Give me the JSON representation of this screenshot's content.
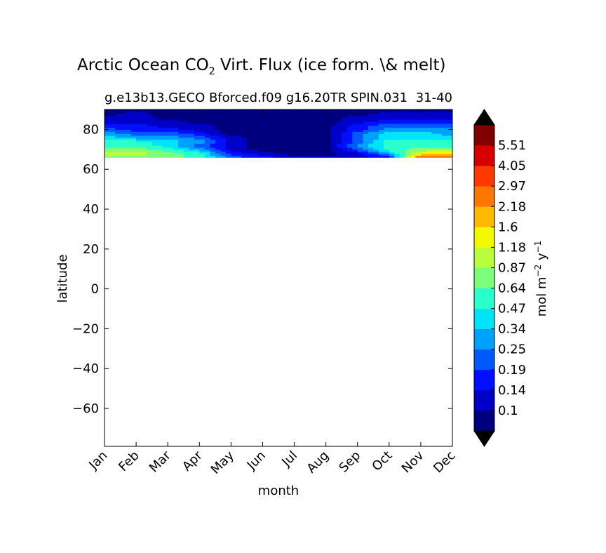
{
  "chart_data": {
    "type": "heatmap",
    "title_main": "Arctic Ocean CO",
    "title_sub": "2",
    "title_rest": " Virt. Flux (ice form. \\& melt)",
    "subtitle_left": "g.e13b13.GECO Bforced.f09 g16.20TR SPIN.031",
    "subtitle_right": "31-40",
    "xlabel": "month",
    "ylabel": "latitude",
    "x_categories": [
      "Jan",
      "Feb",
      "Mar",
      "Apr",
      "May",
      "Jun",
      "Jul",
      "Aug",
      "Sep",
      "Oct",
      "Nov",
      "Dec"
    ],
    "yticks": [
      80,
      60,
      40,
      20,
      0,
      -20,
      -40,
      -60
    ],
    "ytick_labels": [
      "80",
      "60",
      "40",
      "20",
      "0",
      "−20",
      "−40",
      "−60"
    ],
    "ylim": [
      -79,
      90
    ],
    "data_lat_range": [
      66,
      90
    ],
    "colorbar": {
      "label_prefix": "mol m",
      "label_exp1": "−2",
      "label_mid": " y",
      "label_exp2": "−1",
      "levels": [
        "0.1",
        "0.14",
        "0.19",
        "0.25",
        "0.34",
        "0.47",
        "0.64",
        "0.87",
        "1.18",
        "1.6",
        "2.18",
        "2.97",
        "4.05",
        "5.51"
      ],
      "colors": [
        "#00007f",
        "#0000c8",
        "#0010ff",
        "#0058ff",
        "#00a0ff",
        "#00e4f8",
        "#2bffcb",
        "#7cff7a",
        "#baff3c",
        "#f4f802",
        "#ffba00",
        "#ff7600",
        "#ff3800",
        "#d70000",
        "#800000"
      ],
      "extend_colors": [
        "#000000",
        "#000000"
      ]
    },
    "series": [
      {
        "lat": 66,
        "values": [
          7,
          7,
          7,
          6,
          3,
          2,
          1,
          1,
          1,
          2,
          12,
          11
        ]
      },
      {
        "lat": 68,
        "values": [
          8,
          8,
          7,
          6,
          2,
          1,
          0,
          0,
          1,
          4,
          9,
          9
        ]
      },
      {
        "lat": 70,
        "values": [
          7,
          7,
          6,
          4,
          1,
          0,
          0,
          0,
          3,
          6,
          7,
          7
        ]
      },
      {
        "lat": 72,
        "values": [
          6,
          6,
          5,
          3,
          1,
          0,
          0,
          0,
          4,
          6,
          6,
          6
        ]
      },
      {
        "lat": 74,
        "values": [
          6,
          6,
          5,
          4,
          1,
          0,
          0,
          0,
          3,
          6,
          6,
          6
        ]
      },
      {
        "lat": 76,
        "values": [
          5,
          4,
          4,
          3,
          1,
          0,
          0,
          0,
          3,
          5,
          5,
          5
        ]
      },
      {
        "lat": 78,
        "values": [
          4,
          3,
          3,
          2,
          0,
          0,
          0,
          0,
          3,
          5,
          5,
          4
        ]
      },
      {
        "lat": 80,
        "values": [
          3,
          2,
          2,
          1,
          0,
          0,
          0,
          0,
          2,
          4,
          4,
          4
        ]
      },
      {
        "lat": 82,
        "values": [
          2,
          2,
          1,
          1,
          0,
          0,
          0,
          0,
          2,
          3,
          3,
          3
        ]
      },
      {
        "lat": 84,
        "values": [
          1,
          1,
          1,
          0,
          0,
          0,
          0,
          0,
          1,
          2,
          2,
          2
        ]
      },
      {
        "lat": 86,
        "values": [
          1,
          1,
          0,
          0,
          0,
          0,
          0,
          0,
          1,
          1,
          1,
          1
        ]
      },
      {
        "lat": 88,
        "values": [
          0,
          1,
          0,
          0,
          0,
          0,
          0,
          0,
          0,
          1,
          1,
          1
        ]
      },
      {
        "lat": 90,
        "values": [
          0,
          0,
          0,
          0,
          0,
          0,
          0,
          0,
          0,
          0,
          0,
          0
        ]
      }
    ]
  }
}
